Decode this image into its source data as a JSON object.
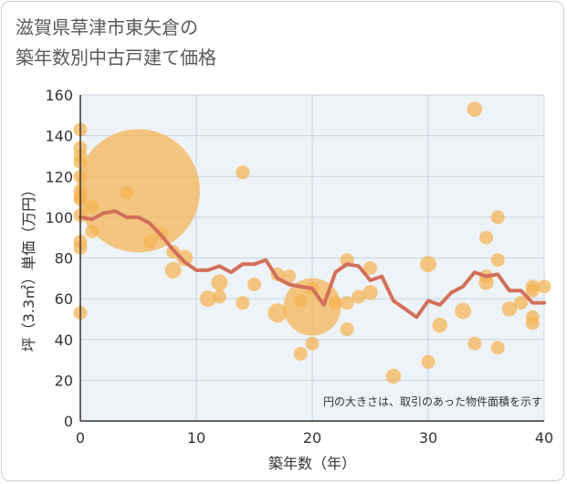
{
  "title": {
    "line1": "滋賀県草津市東矢倉の",
    "line2": "築年数別中古戸建て価格"
  },
  "colors": {
    "bubble": "#f5b352",
    "line": "#d2705a",
    "grid": "#c8d4e0",
    "plot_background": "#eef3f8"
  },
  "chart_data": {
    "type": "scatter",
    "title": "滋賀県草津市東矢倉の築年数別中古戸建て価格",
    "xlabel": "築年数（年）",
    "ylabel": "坪（3.3㎡）単価（万円）",
    "xlim": [
      0,
      40
    ],
    "ylim": [
      0,
      160
    ],
    "x_ticks": [
      0,
      10,
      20,
      30,
      40
    ],
    "y_ticks": [
      0,
      20,
      40,
      60,
      80,
      100,
      120,
      140,
      160
    ],
    "grid": true,
    "annotation": "円の大きさは、取引のあった物件面積を示す",
    "bubbles": [
      {
        "x": 0,
        "y": 143,
        "size": 1
      },
      {
        "x": 0,
        "y": 134,
        "size": 1
      },
      {
        "x": 0,
        "y": 130,
        "size": 1
      },
      {
        "x": 0,
        "y": 127,
        "size": 1
      },
      {
        "x": 0,
        "y": 120,
        "size": 1
      },
      {
        "x": 0,
        "y": 113,
        "size": 1
      },
      {
        "x": 0,
        "y": 110,
        "size": 1
      },
      {
        "x": 0,
        "y": 109,
        "size": 1
      },
      {
        "x": 0,
        "y": 101,
        "size": 1
      },
      {
        "x": 0,
        "y": 88,
        "size": 1
      },
      {
        "x": 0,
        "y": 85,
        "size": 1
      },
      {
        "x": 0,
        "y": 53,
        "size": 1
      },
      {
        "x": 1,
        "y": 105,
        "size": 1
      },
      {
        "x": 1,
        "y": 93,
        "size": 1
      },
      {
        "x": 4,
        "y": 112,
        "size": 1
      },
      {
        "x": 5,
        "y": 113,
        "size": 9
      },
      {
        "x": 6,
        "y": 88,
        "size": 1
      },
      {
        "x": 7,
        "y": 92,
        "size": 1
      },
      {
        "x": 8,
        "y": 83,
        "size": 1
      },
      {
        "x": 8,
        "y": 74,
        "size": 1.2
      },
      {
        "x": 9,
        "y": 80,
        "size": 1.2
      },
      {
        "x": 11,
        "y": 60,
        "size": 1.2
      },
      {
        "x": 12,
        "y": 68,
        "size": 1.2
      },
      {
        "x": 12,
        "y": 61,
        "size": 1
      },
      {
        "x": 14,
        "y": 122,
        "size": 1
      },
      {
        "x": 14,
        "y": 58,
        "size": 1
      },
      {
        "x": 15,
        "y": 67,
        "size": 1
      },
      {
        "x": 17,
        "y": 53,
        "size": 1.4
      },
      {
        "x": 17,
        "y": 72,
        "size": 1
      },
      {
        "x": 18,
        "y": 71,
        "size": 1
      },
      {
        "x": 19,
        "y": 59,
        "size": 1
      },
      {
        "x": 19,
        "y": 33,
        "size": 1
      },
      {
        "x": 20,
        "y": 65,
        "size": 1
      },
      {
        "x": 20,
        "y": 56,
        "size": 4.2
      },
      {
        "x": 20,
        "y": 38,
        "size": 1
      },
      {
        "x": 22,
        "y": 58,
        "size": 1
      },
      {
        "x": 23,
        "y": 79,
        "size": 1
      },
      {
        "x": 23,
        "y": 58,
        "size": 1
      },
      {
        "x": 23,
        "y": 45,
        "size": 1
      },
      {
        "x": 24,
        "y": 61,
        "size": 1
      },
      {
        "x": 25,
        "y": 75,
        "size": 1
      },
      {
        "x": 25,
        "y": 63,
        "size": 1.1
      },
      {
        "x": 27,
        "y": 22,
        "size": 1.1
      },
      {
        "x": 30,
        "y": 77,
        "size": 1.2
      },
      {
        "x": 30,
        "y": 29,
        "size": 1
      },
      {
        "x": 31,
        "y": 47,
        "size": 1.1
      },
      {
        "x": 33,
        "y": 54,
        "size": 1.2
      },
      {
        "x": 34,
        "y": 153,
        "size": 1.1
      },
      {
        "x": 34,
        "y": 38,
        "size": 1
      },
      {
        "x": 35,
        "y": 90,
        "size": 1
      },
      {
        "x": 35,
        "y": 71,
        "size": 1
      },
      {
        "x": 35,
        "y": 68,
        "size": 1.1
      },
      {
        "x": 36,
        "y": 100,
        "size": 1
      },
      {
        "x": 36,
        "y": 79,
        "size": 1
      },
      {
        "x": 36,
        "y": 36,
        "size": 1
      },
      {
        "x": 37,
        "y": 55,
        "size": 1.1
      },
      {
        "x": 38,
        "y": 58,
        "size": 1
      },
      {
        "x": 39,
        "y": 66,
        "size": 1
      },
      {
        "x": 39,
        "y": 64,
        "size": 1
      },
      {
        "x": 39,
        "y": 51,
        "size": 1
      },
      {
        "x": 39,
        "y": 48,
        "size": 1
      },
      {
        "x": 40,
        "y": 66,
        "size": 1
      }
    ],
    "average_line": {
      "x": [
        0,
        1,
        2,
        3,
        4,
        5,
        6,
        7,
        8,
        9,
        10,
        11,
        12,
        13,
        14,
        15,
        16,
        17,
        18,
        19,
        20,
        21,
        22,
        23,
        24,
        25,
        26,
        27,
        28,
        29,
        30,
        31,
        32,
        33,
        34,
        35,
        36,
        37,
        38,
        39,
        40
      ],
      "y": [
        100,
        99,
        102,
        103,
        100,
        100,
        97,
        91,
        84,
        78,
        74,
        74,
        76,
        73,
        77,
        77,
        79,
        70,
        67,
        66,
        65,
        57,
        73,
        77,
        76,
        69,
        71,
        59,
        55,
        51,
        59,
        57,
        63,
        66,
        73,
        71,
        72,
        64,
        64,
        58,
        58
      ]
    }
  }
}
